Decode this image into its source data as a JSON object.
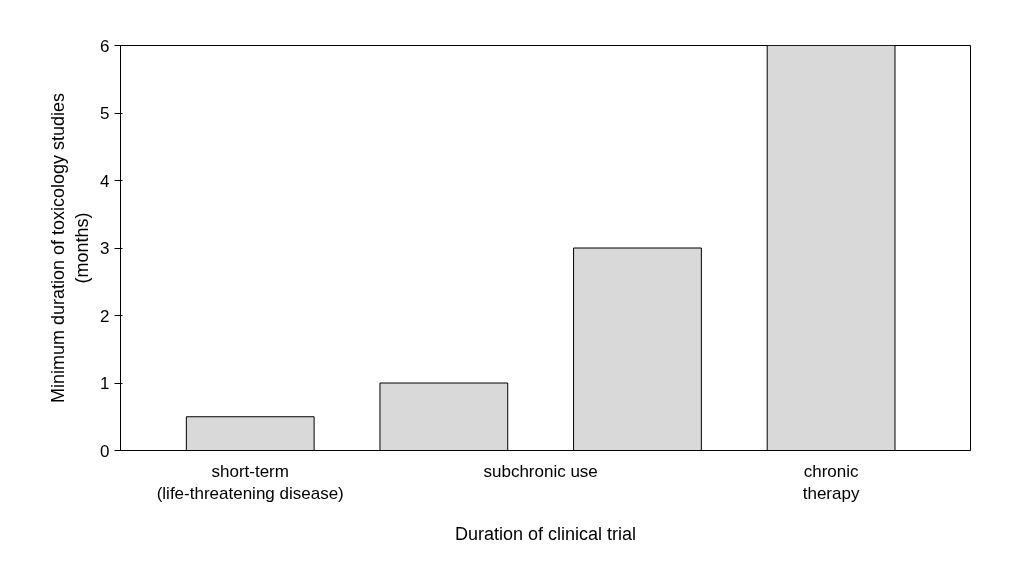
{
  "chart_data": {
    "type": "bar",
    "xlabel": "Duration of clinical trial",
    "ylabel": "Minimum duration of toxicology studies\n(months)",
    "categories": [
      "short-term\n(life-threatening disease)",
      null,
      null,
      "chronic\ntherapy"
    ],
    "values": [
      0.5,
      1,
      3,
      6
    ],
    "color": "#d9d9d9",
    "ylim": [
      0,
      6
    ],
    "yticks": [
      0,
      1,
      2,
      3,
      4,
      5,
      6
    ],
    "grid": false,
    "annotations": [
      {
        "text": "subchronic use"
      }
    ]
  }
}
